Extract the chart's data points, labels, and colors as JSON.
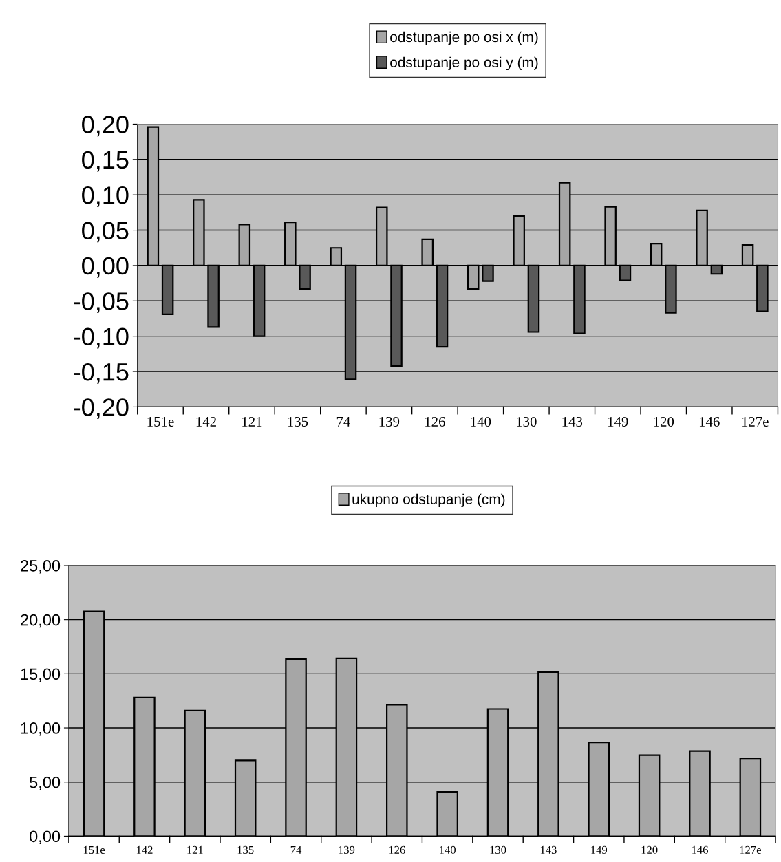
{
  "chart_data": [
    {
      "type": "bar",
      "categories": [
        "151e",
        "142",
        "121",
        "135",
        "74",
        "139",
        "126",
        "140",
        "130",
        "143",
        "149",
        "120",
        "146",
        "127e"
      ],
      "series": [
        {
          "name": "odstupanje po osi x (m)",
          "color": "#a6a6a6",
          "values": [
            0.196,
            0.093,
            0.058,
            0.061,
            0.025,
            0.082,
            0.037,
            -0.033,
            0.07,
            0.117,
            0.083,
            0.031,
            0.078,
            0.029
          ]
        },
        {
          "name": "odstupanje po osi y (m)",
          "color": "#595959",
          "values": [
            -0.069,
            -0.087,
            -0.1,
            -0.033,
            -0.161,
            -0.142,
            -0.115,
            -0.022,
            -0.094,
            -0.096,
            -0.021,
            -0.067,
            -0.012,
            -0.065
          ]
        }
      ],
      "ylim": [
        -0.2,
        0.2
      ],
      "yticks": [
        {
          "value": -0.2,
          "label": "-0,20"
        },
        {
          "value": -0.15,
          "label": "-0,15"
        },
        {
          "value": -0.1,
          "label": "-0,10"
        },
        {
          "value": -0.05,
          "label": "-0,05"
        },
        {
          "value": 0,
          "label": "0,00"
        },
        {
          "value": 0.05,
          "label": "0,05"
        },
        {
          "value": 0.1,
          "label": "0,10"
        },
        {
          "value": 0.15,
          "label": "0,15"
        },
        {
          "value": 0.2,
          "label": "0,20"
        }
      ],
      "grid": "y",
      "legend": "top"
    },
    {
      "type": "bar",
      "categories": [
        "151e",
        "142",
        "121",
        "135",
        "74",
        "139",
        "126",
        "140",
        "130",
        "143",
        "149",
        "120",
        "146",
        "127e"
      ],
      "series": [
        {
          "name": "ukupno odstupanje (cm)",
          "color": "#a6a6a6",
          "values": [
            20.77,
            12.8,
            11.6,
            6.99,
            16.35,
            16.43,
            12.14,
            4.08,
            11.75,
            15.15,
            8.66,
            7.48,
            7.87,
            7.13
          ]
        }
      ],
      "ylim": [
        0,
        25
      ],
      "yticks": [
        {
          "value": 0,
          "label": "0,00"
        },
        {
          "value": 5,
          "label": "5,00"
        },
        {
          "value": 10,
          "label": "10,00"
        },
        {
          "value": 15,
          "label": "15,00"
        },
        {
          "value": 20,
          "label": "20,00"
        },
        {
          "value": 25,
          "label": "25,00"
        }
      ],
      "grid": "y",
      "legend": "top"
    }
  ]
}
